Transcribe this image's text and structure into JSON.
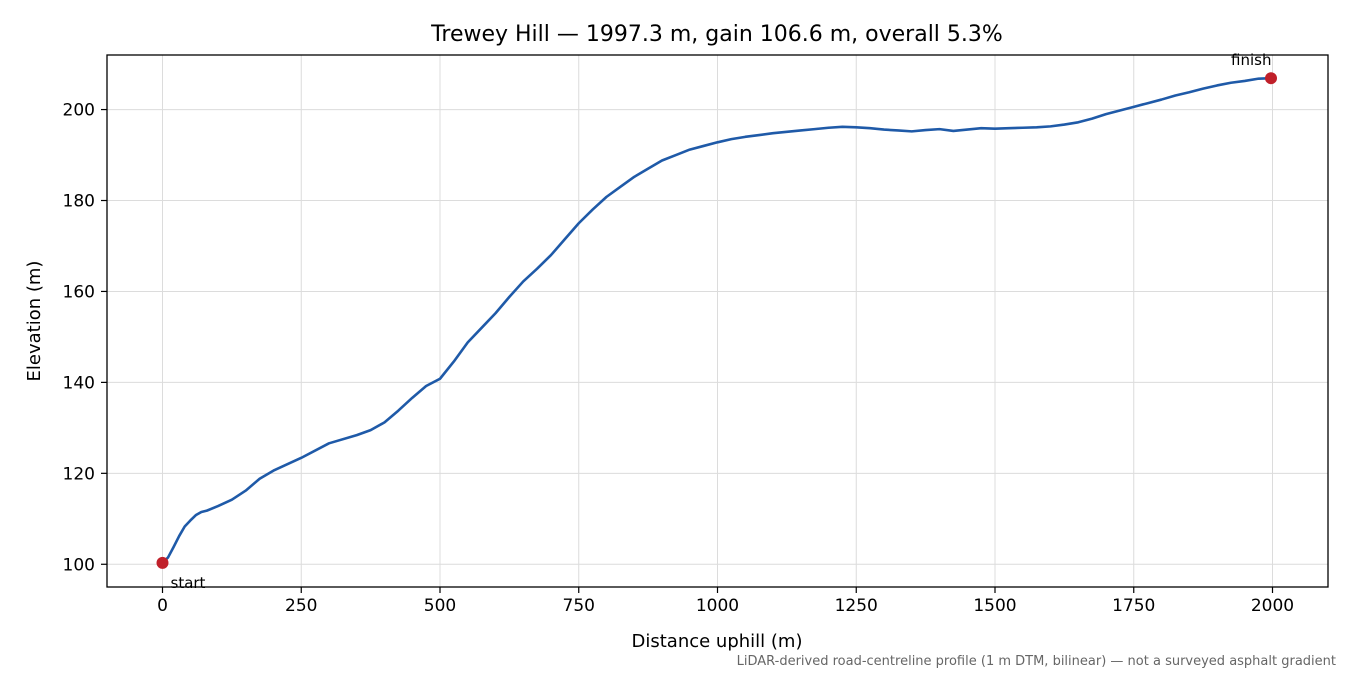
{
  "chart_data": {
    "type": "line",
    "title": "Trewey Hill — 1997.3 m, gain 106.6 m, overall 5.3%",
    "xlabel": "Distance uphill (m)",
    "ylabel": "Elevation (m)",
    "xlim": [
      -100,
      2100
    ],
    "ylim": [
      95,
      212
    ],
    "x_ticks": [
      0,
      250,
      500,
      750,
      1000,
      1250,
      1500,
      1750,
      2000
    ],
    "y_ticks": [
      100,
      120,
      140,
      160,
      180,
      200
    ],
    "grid": true,
    "line_color": "#1f5aa8",
    "marker_color": "#c0202a",
    "series": [
      {
        "x": [
          0,
          10,
          20,
          30,
          40,
          50,
          60,
          70,
          80,
          100,
          125,
          150,
          175,
          200,
          250,
          300,
          350,
          375,
          400,
          425,
          450,
          475,
          500,
          525,
          550,
          575,
          600,
          625,
          650,
          675,
          700,
          725,
          750,
          775,
          800,
          825,
          850,
          875,
          900,
          925,
          950,
          975,
          1000,
          1025,
          1050,
          1075,
          1100,
          1125,
          1150,
          1175,
          1200,
          1225,
          1250,
          1275,
          1300,
          1325,
          1350,
          1375,
          1400,
          1425,
          1450,
          1475,
          1500,
          1525,
          1550,
          1575,
          1600,
          1625,
          1650,
          1675,
          1700,
          1725,
          1750,
          1775,
          1800,
          1825,
          1850,
          1875,
          1900,
          1925,
          1950,
          1975,
          1997.3
        ],
        "y": [
          100.3,
          101.5,
          103.8,
          106.2,
          108.3,
          109.6,
          110.8,
          111.5,
          111.8,
          112.8,
          114.2,
          116.2,
          118.8,
          120.6,
          123.4,
          126.6,
          128.4,
          129.5,
          131.2,
          133.8,
          136.6,
          139.2,
          140.8,
          144.6,
          148.8,
          152.0,
          155.2,
          158.8,
          162.2,
          165.0,
          168.0,
          171.5,
          175.0,
          178.0,
          180.8,
          183.0,
          185.2,
          187.0,
          188.8,
          190.0,
          191.2,
          192.0,
          192.8,
          193.5,
          194.0,
          194.4,
          194.8,
          195.1,
          195.4,
          195.7,
          196.0,
          196.2,
          196.1,
          195.9,
          195.6,
          195.4,
          195.2,
          195.5,
          195.7,
          195.3,
          195.6,
          195.9,
          195.8,
          195.9,
          196.0,
          196.1,
          196.3,
          196.7,
          197.2,
          198.0,
          199.0,
          199.8,
          200.6,
          201.4,
          202.2,
          203.1,
          203.8,
          204.6,
          205.3,
          205.9,
          206.3,
          206.8,
          206.9
        ]
      }
    ],
    "annotations": [
      {
        "label": "start",
        "x": 0,
        "y": 100.3
      },
      {
        "label": "finish",
        "x": 1997.3,
        "y": 206.9
      }
    ],
    "footnote": "LiDAR-derived road-centreline profile (1 m DTM, bilinear) — not a surveyed asphalt gradient"
  }
}
